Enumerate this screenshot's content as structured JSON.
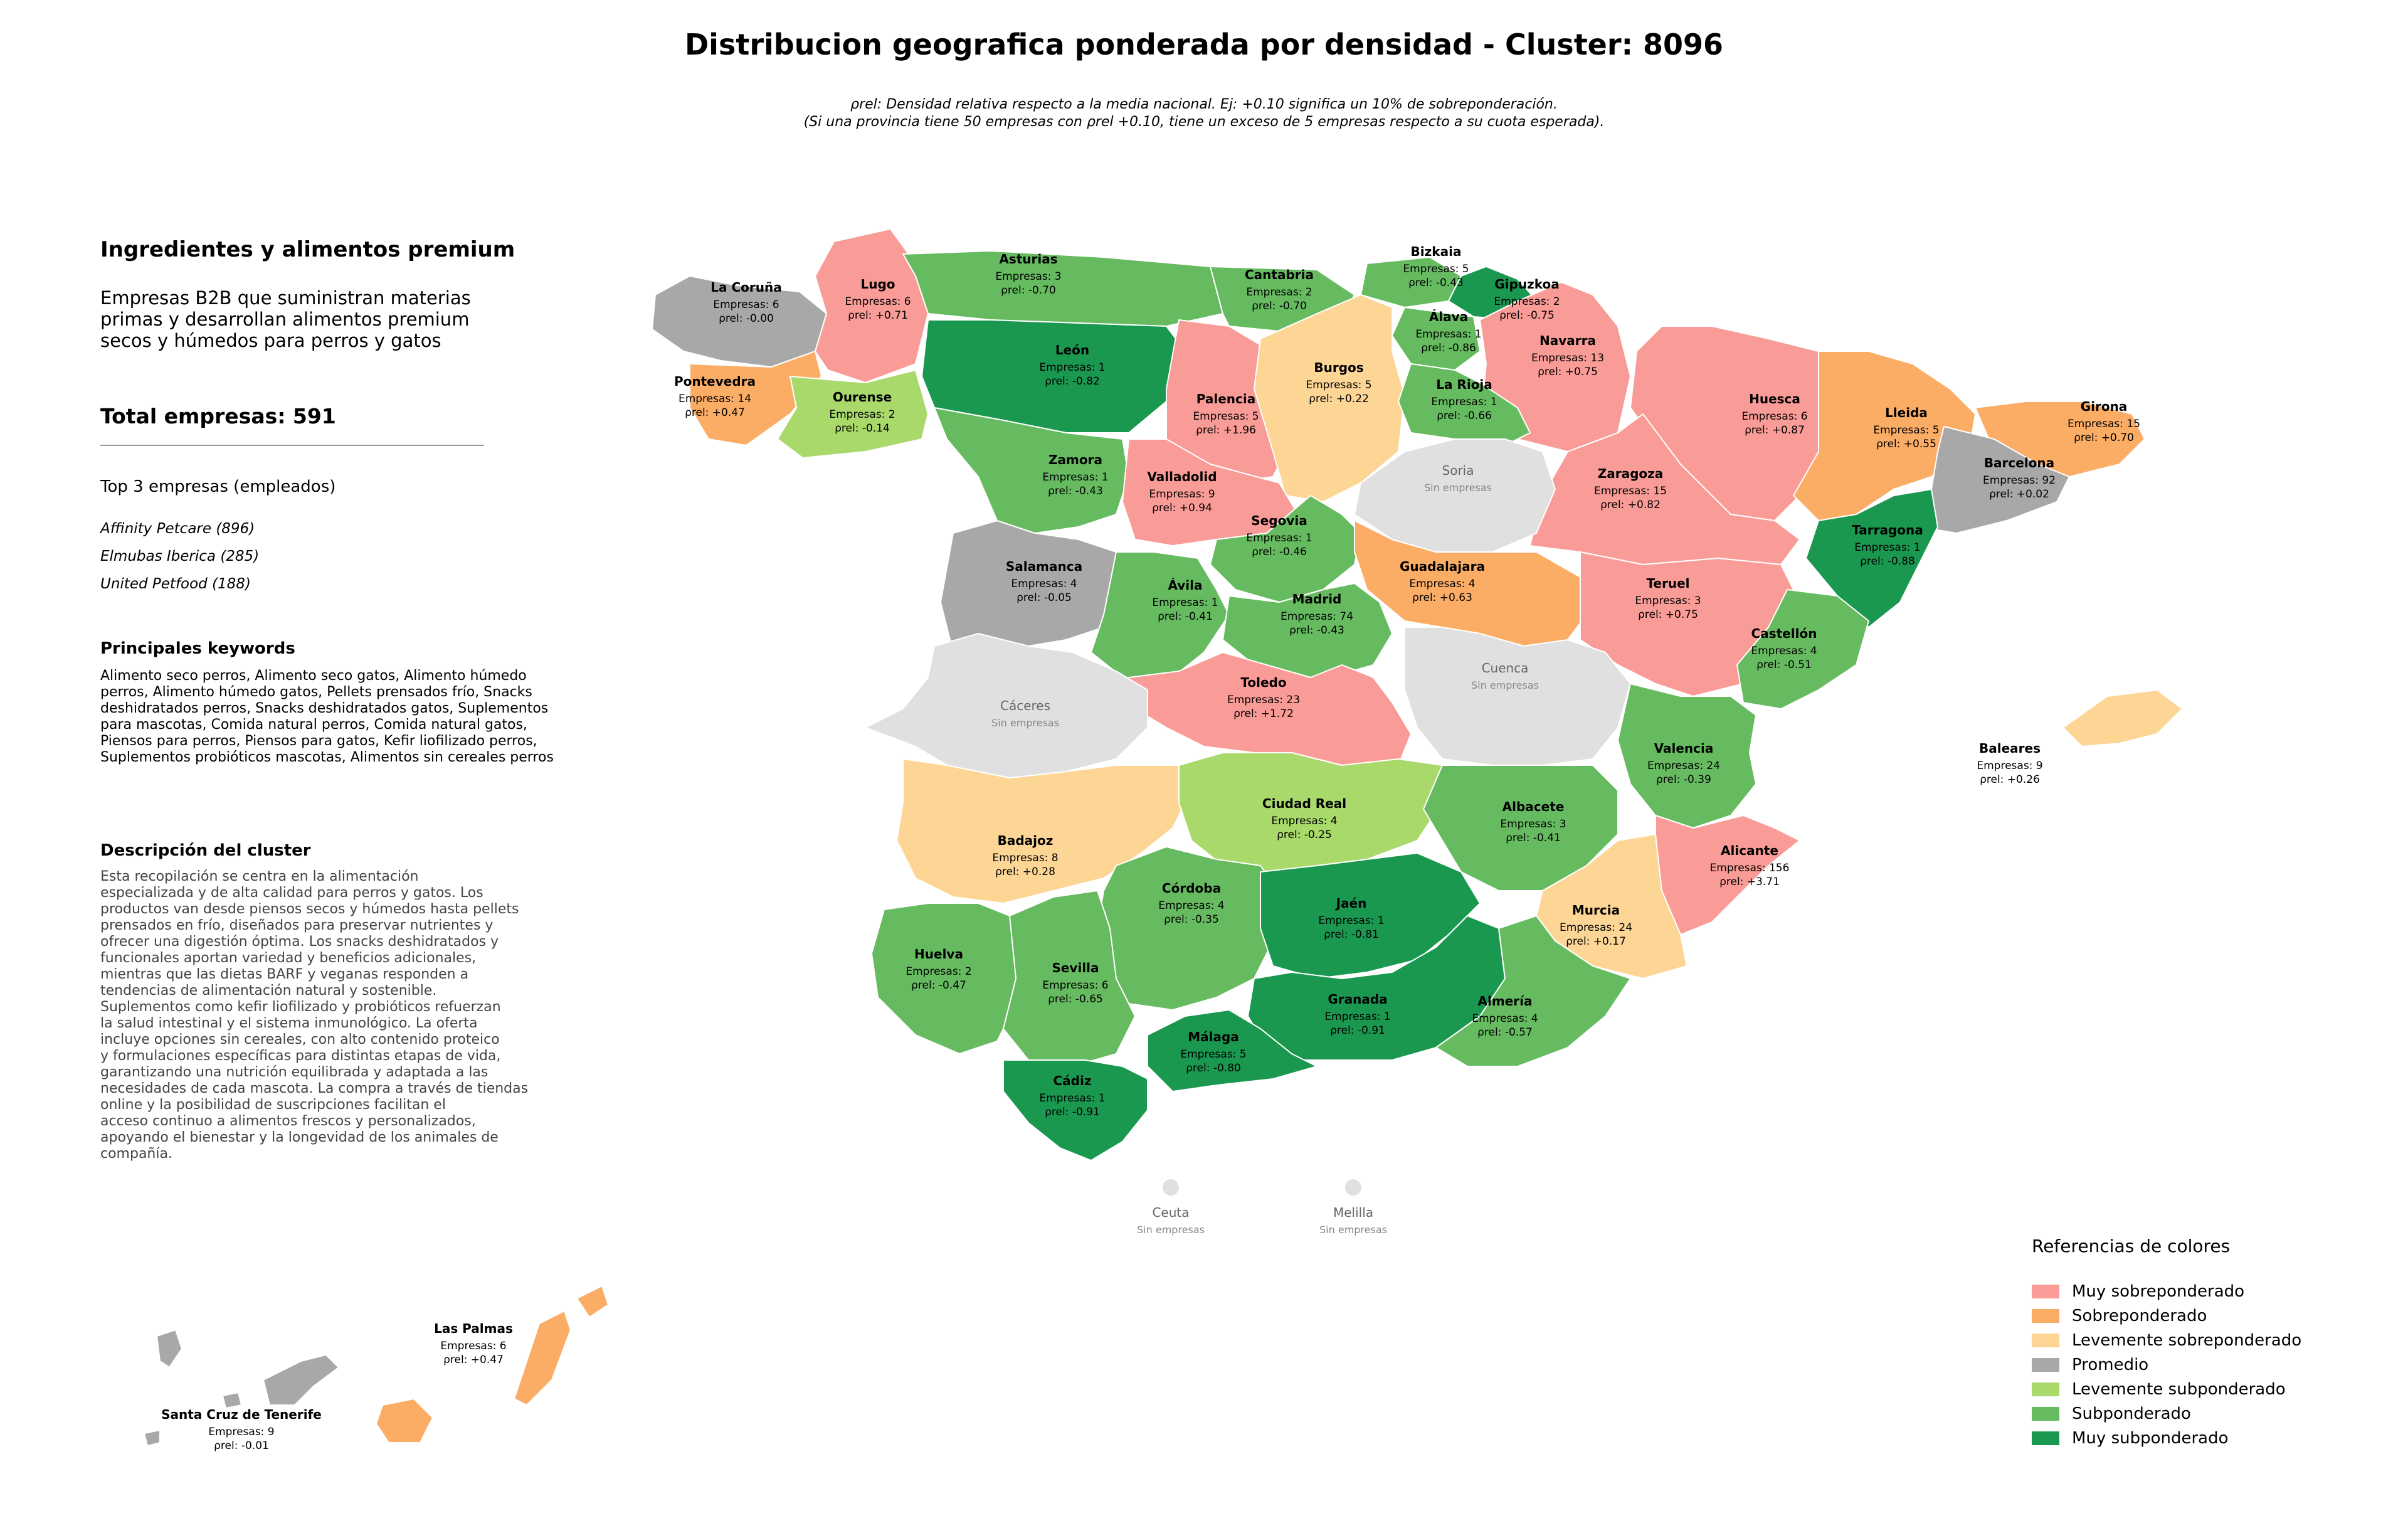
{
  "title": "Distribucion geografica ponderada por densidad - Cluster: 8096",
  "subtitle_line1": "ρrel: Densidad relativa respecto a la media nacional. Ej: +0.10 significa un 10% de sobreponderación.",
  "subtitle_line2": "(Si una provincia tiene 50 empresas con ρrel +0.10, tiene un exceso de 5 empresas respecto a su cuota esperada).",
  "panel": {
    "heading": "Ingredientes y alimentos premium",
    "description": "Empresas B2B que suministran materias\nprimas y desarrollan alimentos premium\nsecos y húmedos para perros y gatos",
    "total": "Total empresas: 591",
    "top3_title": "Top 3 empresas (empleados)",
    "top3": [
      "Affinity Petcare (896)",
      "Elmubas Iberica (285)",
      "United Petfood (188)"
    ],
    "keywords_title": "Principales keywords",
    "keywords": "Alimento seco perros, Alimento seco gatos, Alimento húmedo perros, Alimento húmedo gatos, Pellets prensados frío, Snacks deshidratados perros, Snacks deshidratados gatos, Suplementos para mascotas, Comida natural perros, Comida natural gatos, Piensos para perros, Piensos para gatos, Kefir liofilizado perros, Suplementos probióticos mascotas, Alimentos sin cereales perros",
    "cluster_title": "Descripción del cluster",
    "cluster_text": "Esta recopilación se centra en la alimentación\nespecializada y de alta calidad para perros y gatos. Los\nproductos van desde piensos secos y húmedos hasta pellets\nprensados en frío, diseñados para preservar nutrientes y\nofrecer una digestión óptima. Los snacks deshidratados y\nfuncionales aportan variedad y beneficios adicionales,\nmientras que las dietas BARF y veganas responden a\ntendencias de alimentación natural y sostenible.\nSuplementos como kefir liofilizado y probióticos refuerzan\nla salud intestinal y el sistema inmunológico. La oferta\nincluye opciones sin cereales, con alto contenido proteico\ny formulaciones específicas para distintas etapas de vida,\ngarantizando una nutrición equilibrada y adaptada a las\nnecesidades de cada mascota. La compra a través de tiendas\nonline y la posibilidad de suscripciones facilitan el\nacceso continuo a alimentos frescos y personalizados,\napoyando el bienestar y la longevidad de los animales de\ncompañía."
  },
  "legend": {
    "title": "Referencias de colores",
    "items": [
      {
        "label": "Muy sobreponderado",
        "color": "#f99b96"
      },
      {
        "label": "Sobreponderado",
        "color": "#fbad66"
      },
      {
        "label": "Levemente sobreponderado",
        "color": "#fdd696"
      },
      {
        "label": "Promedio",
        "color": "#a8a8a8"
      },
      {
        "label": "Levemente subponderado",
        "color": "#a8d96a"
      },
      {
        "label": "Subponderado",
        "color": "#66bb60"
      },
      {
        "label": "Muy subponderado",
        "color": "#1a9850"
      }
    ]
  },
  "no_data_color": "#e0e0e0",
  "rho_prefix": "ρrel: ",
  "empresas_prefix": "Empresas: ",
  "sin_empresas": "Sin empresas",
  "provinces": [
    {
      "name": "La Coruña",
      "count": 6,
      "rho": "-0.00",
      "cat": 3
    },
    {
      "name": "Lugo",
      "count": 6,
      "rho": "+0.71",
      "cat": 0
    },
    {
      "name": "Asturias",
      "count": 3,
      "rho": "-0.70",
      "cat": 5
    },
    {
      "name": "Cantabria",
      "count": 2,
      "rho": "-0.70",
      "cat": 5
    },
    {
      "name": "Bizkaia",
      "count": 5,
      "rho": "-0.43",
      "cat": 5
    },
    {
      "name": "Gipuzkoa",
      "count": 2,
      "rho": "-0.75",
      "cat": 6
    },
    {
      "name": "Álava",
      "count": 1,
      "rho": "-0.86",
      "cat": 5
    },
    {
      "name": "Navarra",
      "count": 13,
      "rho": "+0.75",
      "cat": 0
    },
    {
      "name": "Pontevedra",
      "count": 14,
      "rho": "+0.47",
      "cat": 1
    },
    {
      "name": "Ourense",
      "count": 2,
      "rho": "-0.14",
      "cat": 4
    },
    {
      "name": "León",
      "count": 1,
      "rho": "-0.82",
      "cat": 6
    },
    {
      "name": "Palencia",
      "count": 5,
      "rho": "+1.96",
      "cat": 0
    },
    {
      "name": "Burgos",
      "count": 5,
      "rho": "+0.22",
      "cat": 2
    },
    {
      "name": "La Rioja",
      "count": 1,
      "rho": "-0.66",
      "cat": 5
    },
    {
      "name": "Huesca",
      "count": 6,
      "rho": "+0.87",
      "cat": 0
    },
    {
      "name": "Lleida",
      "count": 5,
      "rho": "+0.55",
      "cat": 1
    },
    {
      "name": "Girona",
      "count": 15,
      "rho": "+0.70",
      "cat": 1
    },
    {
      "name": "Barcelona",
      "count": 92,
      "rho": "+0.02",
      "cat": 3
    },
    {
      "name": "Zamora",
      "count": 1,
      "rho": "-0.43",
      "cat": 5
    },
    {
      "name": "Valladolid",
      "count": 9,
      "rho": "+0.94",
      "cat": 0
    },
    {
      "name": "Zaragoza",
      "count": 15,
      "rho": "+0.82",
      "cat": 0
    },
    {
      "name": "Tarragona",
      "count": 1,
      "rho": "-0.88",
      "cat": 6
    },
    {
      "name": "Salamanca",
      "count": 4,
      "rho": "-0.05",
      "cat": 3
    },
    {
      "name": "Segovia",
      "count": 1,
      "rho": "-0.46",
      "cat": 5
    },
    {
      "name": "Guadalajara",
      "count": 4,
      "rho": "+0.63",
      "cat": 1
    },
    {
      "name": "Ávila",
      "count": 1,
      "rho": "-0.41",
      "cat": 5
    },
    {
      "name": "Madrid",
      "count": 74,
      "rho": "-0.43",
      "cat": 5
    },
    {
      "name": "Teruel",
      "count": 3,
      "rho": "+0.75",
      "cat": 0
    },
    {
      "name": "Castellón",
      "count": 4,
      "rho": "-0.51",
      "cat": 5
    },
    {
      "name": "Toledo",
      "count": 23,
      "rho": "+1.72",
      "cat": 0
    },
    {
      "name": "Valencia",
      "count": 24,
      "rho": "-0.39",
      "cat": 5
    },
    {
      "name": "Baleares",
      "count": 9,
      "rho": "+0.26",
      "cat": 2
    },
    {
      "name": "Badajoz",
      "count": 8,
      "rho": "+0.28",
      "cat": 2
    },
    {
      "name": "Ciudad Real",
      "count": 4,
      "rho": "-0.25",
      "cat": 4
    },
    {
      "name": "Albacete",
      "count": 3,
      "rho": "-0.41",
      "cat": 5
    },
    {
      "name": "Alicante",
      "count": 156,
      "rho": "+3.71",
      "cat": 0
    },
    {
      "name": "Córdoba",
      "count": 4,
      "rho": "-0.35",
      "cat": 5
    },
    {
      "name": "Jaén",
      "count": 1,
      "rho": "-0.81",
      "cat": 6
    },
    {
      "name": "Murcia",
      "count": 24,
      "rho": "+0.17",
      "cat": 2
    },
    {
      "name": "Huelva",
      "count": 2,
      "rho": "-0.47",
      "cat": 5
    },
    {
      "name": "Sevilla",
      "count": 6,
      "rho": "-0.65",
      "cat": 5
    },
    {
      "name": "Granada",
      "count": 1,
      "rho": "-0.91",
      "cat": 6
    },
    {
      "name": "Almería",
      "count": 4,
      "rho": "-0.57",
      "cat": 5
    },
    {
      "name": "Málaga",
      "count": 5,
      "rho": "-0.80",
      "cat": 6
    },
    {
      "name": "Cádiz",
      "count": 1,
      "rho": "-0.91",
      "cat": 6
    },
    {
      "name": "Las Palmas",
      "count": 6,
      "rho": "+0.47",
      "cat": 1
    },
    {
      "name": "Santa Cruz de Tenerife",
      "count": 9,
      "rho": "-0.01",
      "cat": 3
    }
  ],
  "no_data_provinces": [
    "Soria",
    "Cuenca",
    "Cáceres",
    "Ceuta",
    "Melilla"
  ]
}
